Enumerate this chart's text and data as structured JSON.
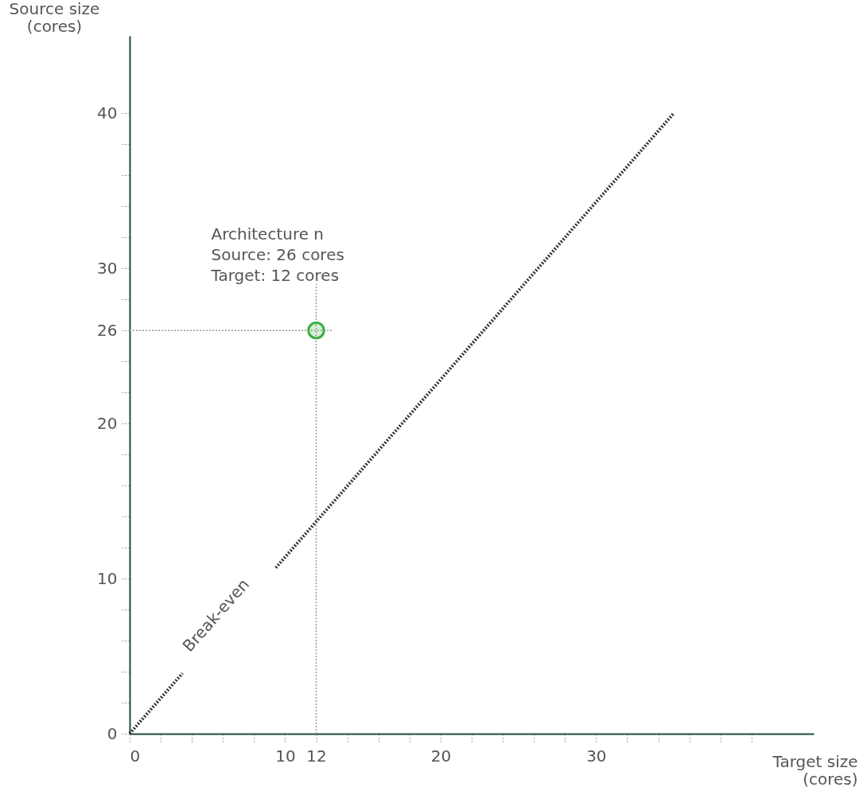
{
  "chart_data": {
    "type": "line",
    "xlabel": "Target size\n(cores)",
    "ylabel": "Source size\n(cores)",
    "xlim": [
      0,
      44
    ],
    "ylim": [
      0,
      45
    ],
    "xticks": [
      0,
      {
        "value": 2,
        "label": null
      },
      {
        "value": 4,
        "label": null
      },
      {
        "value": 6,
        "label": null
      },
      {
        "value": 8,
        "label": null
      },
      10,
      12,
      {
        "value": 14,
        "label": null
      },
      {
        "value": 16,
        "label": null
      },
      {
        "value": 18,
        "label": null
      },
      20,
      {
        "value": 22,
        "label": null
      },
      {
        "value": 24,
        "label": null
      },
      {
        "value": 26,
        "label": null
      },
      {
        "value": 28,
        "label": null
      },
      30,
      {
        "value": 32,
        "label": null
      },
      {
        "value": 34,
        "label": null
      },
      {
        "value": 36,
        "label": null
      },
      {
        "value": 38,
        "label": null
      },
      {
        "value": 40,
        "label": null
      }
    ],
    "yticks": [
      0,
      {
        "value": 2,
        "label": null
      },
      {
        "value": 4,
        "label": null
      },
      {
        "value": 6,
        "label": null
      },
      {
        "value": 8,
        "label": null
      },
      10,
      {
        "value": 12,
        "label": null
      },
      {
        "value": 14,
        "label": null
      },
      {
        "value": 16,
        "label": null
      },
      {
        "value": 18,
        "label": null
      },
      20,
      {
        "value": 22,
        "label": null
      },
      {
        "value": 24,
        "label": null
      },
      26,
      {
        "value": 28,
        "label": null
      },
      30,
      {
        "value": 32,
        "label": null
      },
      {
        "value": 34,
        "label": null
      },
      {
        "value": 36,
        "label": null
      },
      {
        "value": 38,
        "label": null
      },
      40
    ],
    "grid": false,
    "series": [
      {
        "type": "line",
        "x": [
          0,
          3.4,
          6,
          9.4,
          35
        ],
        "values": [
          0,
          3.9,
          null,
          10.7,
          40
        ],
        "color": "#333333",
        "line_style": "dotted",
        "marker": "none"
      },
      {
        "type": "scatter",
        "x": [
          12
        ],
        "values": [
          26
        ],
        "color": "#3cb043",
        "marker": "circle"
      }
    ],
    "ref_lines": [
      {
        "axis": "x",
        "value": 12,
        "color": "#999999",
        "line_style": "dotted"
      },
      {
        "axis": "y",
        "value": 26,
        "color": "#999999",
        "line_style": "dotted"
      }
    ],
    "annotations": [
      {
        "text": "Architecture n\nSource: 26 cores\nTarget: 12 cores",
        "x": 12,
        "y": 26
      },
      "Break-even"
    ]
  }
}
